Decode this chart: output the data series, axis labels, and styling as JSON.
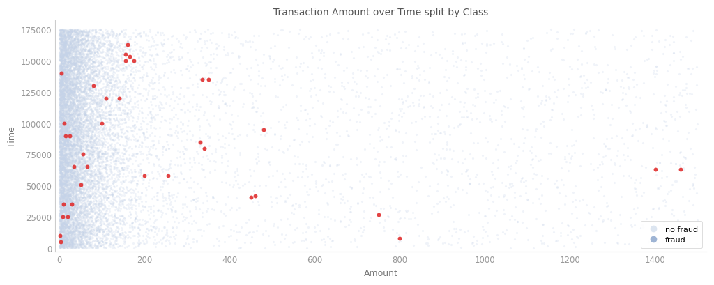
{
  "title": "Transaction Amount over Time split by Class",
  "xlabel": "Amount",
  "ylabel": "Time",
  "xlim": [
    -10,
    1520
  ],
  "ylim": [
    -3000,
    182000
  ],
  "background_color": "#ffffff",
  "no_fraud_color": "#c5d3e8",
  "fraud_color": "#e03030",
  "no_fraud_alpha": 0.25,
  "fraud_alpha": 0.9,
  "no_fraud_size": 5,
  "fraud_size": 18,
  "legend_no_fraud_color": "#dce5f0",
  "legend_fraud_color": "#9eb4d4",
  "legend_labels": [
    "no fraud",
    "fraud"
  ],
  "title_fontsize": 10,
  "label_fontsize": 9,
  "seed": 42,
  "n_no_fraud_dense": 9000,
  "n_no_fraud_sparse": 2000,
  "fraud_points_x": [
    2,
    3,
    5,
    8,
    10,
    12,
    15,
    20,
    25,
    30,
    35,
    50,
    55,
    65,
    80,
    100,
    110,
    140,
    155,
    155,
    160,
    165,
    175,
    200,
    255,
    330,
    335,
    340,
    350,
    450,
    460,
    480,
    750,
    800,
    1400,
    1460
  ],
  "fraud_points_y": [
    10000,
    5000,
    140000,
    25000,
    35000,
    100000,
    90000,
    25000,
    90000,
    35000,
    65000,
    51000,
    75000,
    65000,
    130000,
    100000,
    120000,
    120000,
    155000,
    150000,
    163000,
    153000,
    150000,
    58000,
    58000,
    85000,
    135000,
    80000,
    135000,
    41000,
    42000,
    95000,
    27000,
    8000,
    63000,
    63000
  ]
}
